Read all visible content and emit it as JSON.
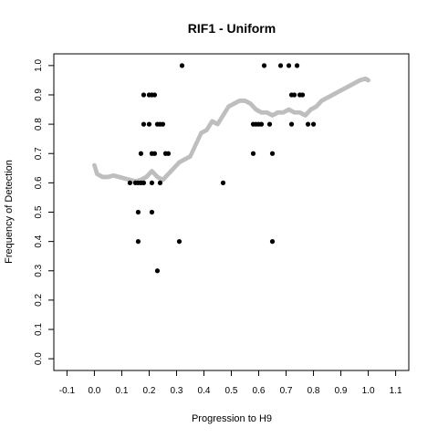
{
  "chart_data": {
    "type": "scatter",
    "title": "RIF1 - Uniform",
    "xlabel": "Progression to H9",
    "ylabel": "Frequency of Detection",
    "xlim": [
      -0.1,
      1.1
    ],
    "ylim": [
      0.0,
      1.0
    ],
    "xticks": [
      "-0.1",
      "0.0",
      "0.1",
      "0.2",
      "0.3",
      "0.4",
      "0.5",
      "0.6",
      "0.7",
      "0.8",
      "0.9",
      "1.0",
      "1.1"
    ],
    "yticks": [
      "0.0",
      "0.1",
      "0.2",
      "0.3",
      "0.4",
      "0.5",
      "0.6",
      "0.7",
      "0.8",
      "0.9",
      "1.0"
    ],
    "grid": false,
    "legend": "none",
    "colors": {
      "points": "#000000",
      "trend": "#bebebe"
    },
    "series": [
      {
        "type": "scatter",
        "points": [
          [
            0.13,
            0.6
          ],
          [
            0.15,
            0.6
          ],
          [
            0.16,
            0.6
          ],
          [
            0.17,
            0.6
          ],
          [
            0.18,
            0.6
          ],
          [
            0.16,
            0.5
          ],
          [
            0.16,
            0.4
          ],
          [
            0.17,
            0.7
          ],
          [
            0.18,
            0.9
          ],
          [
            0.18,
            0.8
          ],
          [
            0.2,
            0.9
          ],
          [
            0.21,
            0.9
          ],
          [
            0.22,
            0.9
          ],
          [
            0.2,
            0.8
          ],
          [
            0.23,
            0.8
          ],
          [
            0.24,
            0.8
          ],
          [
            0.25,
            0.8
          ],
          [
            0.21,
            0.7
          ],
          [
            0.22,
            0.7
          ],
          [
            0.26,
            0.7
          ],
          [
            0.27,
            0.7
          ],
          [
            0.21,
            0.6
          ],
          [
            0.24,
            0.6
          ],
          [
            0.21,
            0.5
          ],
          [
            0.23,
            0.3
          ],
          [
            0.31,
            0.4
          ],
          [
            0.32,
            1.0
          ],
          [
            0.47,
            0.6
          ],
          [
            0.58,
            0.7
          ],
          [
            0.58,
            0.8
          ],
          [
            0.59,
            0.8
          ],
          [
            0.6,
            0.8
          ],
          [
            0.61,
            0.8
          ],
          [
            0.62,
            1.0
          ],
          [
            0.64,
            0.8
          ],
          [
            0.65,
            0.7
          ],
          [
            0.65,
            0.4
          ],
          [
            0.68,
            1.0
          ],
          [
            0.71,
            1.0
          ],
          [
            0.74,
            1.0
          ],
          [
            0.72,
            0.8
          ],
          [
            0.72,
            0.9
          ],
          [
            0.73,
            0.9
          ],
          [
            0.75,
            0.9
          ],
          [
            0.76,
            0.9
          ],
          [
            0.78,
            0.8
          ],
          [
            0.8,
            0.8
          ]
        ]
      },
      {
        "type": "line",
        "points": [
          [
            0.0,
            0.66
          ],
          [
            0.01,
            0.63
          ],
          [
            0.03,
            0.62
          ],
          [
            0.05,
            0.62
          ],
          [
            0.07,
            0.625
          ],
          [
            0.09,
            0.62
          ],
          [
            0.11,
            0.615
          ],
          [
            0.13,
            0.61
          ],
          [
            0.15,
            0.605
          ],
          [
            0.17,
            0.61
          ],
          [
            0.19,
            0.62
          ],
          [
            0.21,
            0.64
          ],
          [
            0.23,
            0.62
          ],
          [
            0.25,
            0.61
          ],
          [
            0.27,
            0.63
          ],
          [
            0.29,
            0.65
          ],
          [
            0.31,
            0.67
          ],
          [
            0.33,
            0.68
          ],
          [
            0.35,
            0.69
          ],
          [
            0.37,
            0.73
          ],
          [
            0.39,
            0.77
          ],
          [
            0.41,
            0.78
          ],
          [
            0.43,
            0.81
          ],
          [
            0.45,
            0.8
          ],
          [
            0.47,
            0.83
          ],
          [
            0.49,
            0.86
          ],
          [
            0.51,
            0.87
          ],
          [
            0.53,
            0.88
          ],
          [
            0.55,
            0.88
          ],
          [
            0.57,
            0.87
          ],
          [
            0.59,
            0.85
          ],
          [
            0.61,
            0.84
          ],
          [
            0.63,
            0.84
          ],
          [
            0.65,
            0.83
          ],
          [
            0.67,
            0.84
          ],
          [
            0.69,
            0.84
          ],
          [
            0.71,
            0.85
          ],
          [
            0.73,
            0.84
          ],
          [
            0.75,
            0.84
          ],
          [
            0.77,
            0.83
          ],
          [
            0.79,
            0.85
          ],
          [
            0.81,
            0.86
          ],
          [
            0.83,
            0.88
          ],
          [
            0.85,
            0.89
          ],
          [
            0.87,
            0.9
          ],
          [
            0.89,
            0.91
          ],
          [
            0.91,
            0.92
          ],
          [
            0.93,
            0.93
          ],
          [
            0.95,
            0.94
          ],
          [
            0.97,
            0.95
          ],
          [
            0.99,
            0.955
          ],
          [
            1.0,
            0.95
          ]
        ]
      }
    ]
  }
}
